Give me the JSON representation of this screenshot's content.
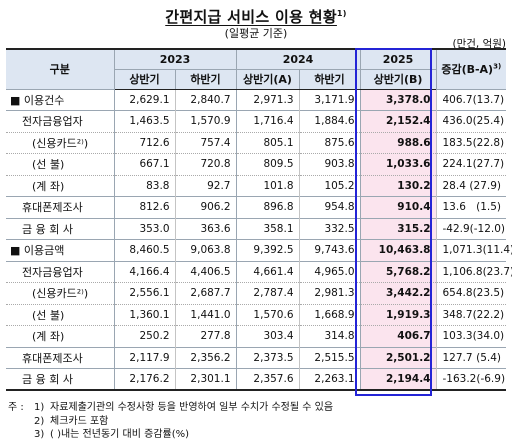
{
  "title": "간편지급 서비스 이용 현황",
  "title_sup": "1)",
  "subtitle": "(일평균 기준)",
  "unit": "(만건, 억원)",
  "header": {
    "category": "구분",
    "years": [
      "2023",
      "2024",
      "2025"
    ],
    "halves": [
      "상반기",
      "하반기",
      "상반기(A)",
      "하반기",
      "상반기(B)"
    ],
    "change": "증감(B-A)",
    "change_sup": "3)"
  },
  "rows": [
    {
      "label": "■ 이용건수",
      "values": [
        "2,629.1",
        "2,840.7",
        "2,971.3",
        "3,171.9",
        "3,378.0"
      ],
      "change": "406.7",
      "pct": "(13.7)"
    },
    {
      "label": "전자금융업자",
      "values": [
        "1,463.5",
        "1,570.9",
        "1,716.4",
        "1,884.6",
        "2,152.4"
      ],
      "change": "436.0",
      "pct": "(25.4)"
    },
    {
      "label": "(신용카드²⁾)",
      "values": [
        "712.6",
        "757.4",
        "805.1",
        "875.6",
        "988.6"
      ],
      "change": "183.5",
      "pct": "(22.8)"
    },
    {
      "label": "(선      불)",
      "values": [
        "667.1",
        "720.8",
        "809.5",
        "903.8",
        "1,033.6"
      ],
      "change": "224.1",
      "pct": "(27.7)"
    },
    {
      "label": "(계      좌)",
      "values": [
        "83.8",
        "92.7",
        "101.8",
        "105.2",
        "130.2"
      ],
      "change": "28.4",
      "pct": "(27.9)"
    },
    {
      "label": "휴대폰제조사",
      "values": [
        "812.6",
        "906.2",
        "896.8",
        "954.8",
        "910.4"
      ],
      "change": "13.6",
      "pct": "(1.5)"
    },
    {
      "label": "금 융 회 사",
      "values": [
        "353.0",
        "363.6",
        "358.1",
        "332.5",
        "315.2"
      ],
      "change": "-42.9",
      "pct": "(-12.0)"
    },
    {
      "label": "■ 이용금액",
      "values": [
        "8,460.5",
        "9,063.8",
        "9,392.5",
        "9,743.6",
        "10,463.8"
      ],
      "change": "1,071.3",
      "pct": "(11.4)"
    },
    {
      "label": "전자금융업자",
      "values": [
        "4,166.4",
        "4,406.5",
        "4,661.4",
        "4,965.0",
        "5,768.2"
      ],
      "change": "1,106.8",
      "pct": "(23.7)"
    },
    {
      "label": "(신용카드²⁾)",
      "values": [
        "2,556.1",
        "2,687.7",
        "2,787.4",
        "2,981.3",
        "3,442.2"
      ],
      "change": "654.8",
      "pct": "(23.5)"
    },
    {
      "label": "(선      불)",
      "values": [
        "1,360.1",
        "1,441.0",
        "1,570.6",
        "1,668.9",
        "1,919.3"
      ],
      "change": "348.7",
      "pct": "(22.2)"
    },
    {
      "label": "(계      좌)",
      "values": [
        "250.2",
        "277.8",
        "303.4",
        "314.8",
        "406.7"
      ],
      "change": "103.3",
      "pct": "(34.0)"
    },
    {
      "label": "휴대폰제조사",
      "values": [
        "2,117.9",
        "2,356.2",
        "2,373.5",
        "2,515.5",
        "2,501.2"
      ],
      "change": "127.7",
      "pct": "(5.4)"
    },
    {
      "label": "금 융 회 사",
      "values": [
        "2,176.2",
        "2,301.1",
        "2,357.6",
        "2,263.1",
        "2,194.4"
      ],
      "change": "-163.2",
      "pct": "(-6.9)"
    }
  ],
  "notes": {
    "prefix": "주 :",
    "items": [
      {
        "num": "1)",
        "text": "자료제출기관의 수정사항 등을 반영하여 일부 수치가 수정될 수 있음"
      },
      {
        "num": "2)",
        "text": "체크카드 포함"
      },
      {
        "num": "3)",
        "text": "( )내는 전년동기 대비 증감률(%)"
      }
    ]
  },
  "colors": {
    "header_bg": "#dde6f2",
    "highlight_bg": "#fbe4ee",
    "box_border": "#2424d6"
  }
}
